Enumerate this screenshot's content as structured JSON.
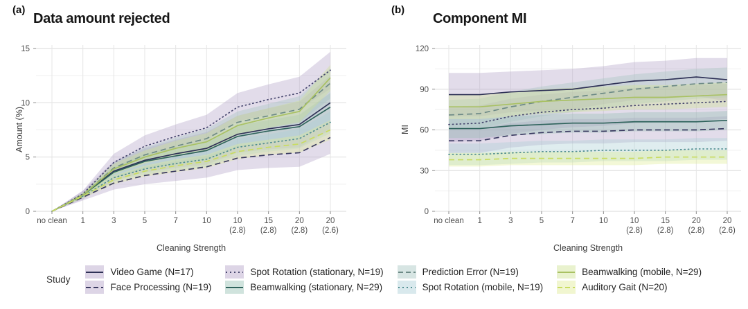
{
  "panels": {
    "a": {
      "tag": "(a)",
      "title": "Data amount rejected",
      "ylabel": "Amount (%)",
      "xlabel": "Cleaning Strength"
    },
    "b": {
      "tag": "(b)",
      "title": "Component MI",
      "ylabel": "MI",
      "xlabel": "Cleaning Strength"
    }
  },
  "legend": {
    "title": "Study",
    "items": [
      {
        "label": "Video Game (N=17)",
        "style": "solid",
        "color": "#2e3156",
        "band": "#b3a2c8"
      },
      {
        "label": "Face Processing (N=19)",
        "style": "dashed",
        "color": "#3a3a61",
        "band": "#b3a2c8"
      },
      {
        "label": "Spot Rotation (stationary, N=19)",
        "style": "dotted",
        "color": "#46466e",
        "band": "#b3a2c8"
      },
      {
        "label": "Beamwalking (stationary, N=29)",
        "style": "solid",
        "color": "#2f635c",
        "band": "#97c1b3"
      },
      {
        "label": "Prediction Error (N=19)",
        "style": "dashed",
        "color": "#6d8a86",
        "band": "#a6c6c1"
      },
      {
        "label": "Spot Rotation (mobile, N=19)",
        "style": "dotted",
        "color": "#4f8d90",
        "band": "#abcfd6"
      },
      {
        "label": "Beamwalking (mobile, N=29)",
        "style": "solid",
        "color": "#a9c163",
        "band": "#cfe292"
      },
      {
        "label": "Auditory Gait (N=20)",
        "style": "dashed",
        "color": "#c9dc60",
        "band": "#dfec96"
      }
    ]
  },
  "chart_data": [
    {
      "id": "a",
      "type": "line",
      "title": "Data amount rejected",
      "xlabel": "Cleaning Strength",
      "ylabel": "Amount (%)",
      "categories": [
        "no clean",
        "1",
        "3",
        "5",
        "7",
        "10",
        "10",
        "15",
        "20",
        "20"
      ],
      "categories_sub": [
        "",
        "",
        "",
        "",
        "",
        "",
        "(2.8)",
        "(2.8)",
        "(2.8)",
        "(2.6)"
      ],
      "ylim": [
        0,
        15
      ],
      "yticks": [
        0,
        5,
        10,
        15
      ],
      "yminor": [
        2.5,
        7.5,
        12.5
      ],
      "grid": true,
      "legend_position": "bottom",
      "series": [
        {
          "name": "Video Game (N=17)",
          "style": "solid",
          "color": "#2e3156",
          "band_color": "#b3a2c8",
          "values": [
            0,
            1.5,
            3.7,
            4.7,
            5.3,
            5.8,
            7.1,
            7.6,
            8.0,
            10.0
          ],
          "band": [
            0,
            0.4,
            0.9,
            1.1,
            1.3,
            1.5,
            1.7,
            1.9,
            2.1,
            2.5
          ]
        },
        {
          "name": "Face Processing (N=19)",
          "style": "dashed",
          "color": "#3a3a61",
          "band_color": "#b3a2c8",
          "values": [
            0,
            1.3,
            2.6,
            3.3,
            3.7,
            4.1,
            4.9,
            5.2,
            5.4,
            6.8
          ],
          "band": [
            0,
            0.3,
            0.6,
            0.8,
            0.9,
            1.0,
            1.1,
            1.2,
            1.3,
            1.5
          ]
        },
        {
          "name": "Spot Rotation (stationary, N=19)",
          "style": "dotted",
          "color": "#46466e",
          "band_color": "#b3a2c8",
          "values": [
            0,
            1.6,
            4.5,
            6.0,
            6.9,
            7.7,
            9.6,
            10.3,
            10.9,
            13.0
          ],
          "band": [
            0,
            0.3,
            0.8,
            1.0,
            1.1,
            1.2,
            1.3,
            1.4,
            1.5,
            1.7
          ]
        },
        {
          "name": "Beamwalking (stationary, N=29)",
          "style": "solid",
          "color": "#2f635c",
          "band_color": "#97c1b3",
          "values": [
            0,
            1.5,
            3.6,
            4.6,
            5.1,
            5.6,
            6.9,
            7.4,
            7.8,
            9.6
          ],
          "band": [
            0,
            0.2,
            0.5,
            0.7,
            0.8,
            0.9,
            1.0,
            1.0,
            1.1,
            1.3
          ]
        },
        {
          "name": "Prediction Error (N=19)",
          "style": "dashed",
          "color": "#6d8a86",
          "band_color": "#a6c6c1",
          "values": [
            0,
            1.5,
            4.0,
            5.2,
            6.0,
            6.7,
            8.2,
            8.8,
            9.4,
            11.8
          ],
          "band": [
            0,
            0.2,
            0.5,
            0.7,
            0.8,
            0.9,
            1.0,
            1.1,
            1.2,
            1.4
          ]
        },
        {
          "name": "Spot Rotation (mobile, N=19)",
          "style": "dotted",
          "color": "#4f8d90",
          "band_color": "#abcfd6",
          "values": [
            0,
            1.4,
            3.1,
            3.9,
            4.4,
            4.8,
            5.9,
            6.3,
            6.7,
            8.2
          ],
          "band": [
            0,
            0.2,
            0.4,
            0.5,
            0.6,
            0.7,
            0.8,
            0.8,
            0.9,
            1.0
          ]
        },
        {
          "name": "Beamwalking (mobile, N=29)",
          "style": "solid",
          "color": "#a9c163",
          "band_color": "#cfe292",
          "values": [
            0,
            1.5,
            3.9,
            5.0,
            5.8,
            6.4,
            7.9,
            8.6,
            9.2,
            12.3
          ],
          "band": [
            0,
            0.2,
            0.5,
            0.6,
            0.7,
            0.8,
            0.9,
            0.9,
            1.0,
            1.2
          ]
        },
        {
          "name": "Auditory Gait (N=20)",
          "style": "dashed",
          "color": "#c9dc60",
          "band_color": "#dfec96",
          "values": [
            0,
            1.4,
            2.9,
            3.7,
            4.2,
            4.6,
            5.5,
            5.9,
            6.2,
            7.5
          ],
          "band": [
            0,
            0.2,
            0.4,
            0.5,
            0.6,
            0.6,
            0.7,
            0.7,
            0.8,
            0.9
          ]
        }
      ]
    },
    {
      "id": "b",
      "type": "line",
      "title": "Component MI",
      "xlabel": "Cleaning Strength",
      "ylabel": "MI",
      "categories": [
        "no clean",
        "1",
        "3",
        "5",
        "7",
        "10",
        "10",
        "15",
        "20",
        "20"
      ],
      "categories_sub": [
        "",
        "",
        "",
        "",
        "",
        "",
        "(2.8)",
        "(2.8)",
        "(2.8)",
        "(2.6)"
      ],
      "ylim": [
        0,
        120
      ],
      "yticks": [
        0,
        30,
        60,
        90,
        120
      ],
      "yminor": [
        15,
        45,
        75,
        105
      ],
      "grid": true,
      "legend_position": "bottom",
      "series": [
        {
          "name": "Video Game (N=17)",
          "style": "solid",
          "color": "#2e3156",
          "band_color": "#b3a2c8",
          "values": [
            86,
            86,
            88,
            89,
            90,
            93,
            96,
            97,
            99,
            97
          ],
          "band": [
            16,
            16,
            15,
            15,
            15,
            14,
            14,
            14,
            14,
            16
          ]
        },
        {
          "name": "Face Processing (N=19)",
          "style": "dashed",
          "color": "#3a3a61",
          "band_color": "#b3a2c8",
          "values": [
            52,
            52,
            56,
            58,
            59,
            59,
            60,
            60,
            60,
            61
          ],
          "band": [
            9,
            9,
            9,
            9,
            9,
            9,
            9,
            9,
            9,
            9
          ]
        },
        {
          "name": "Spot Rotation (stationary, N=19)",
          "style": "dotted",
          "color": "#46466e",
          "band_color": "#b3a2c8",
          "values": [
            64,
            65,
            70,
            73,
            75,
            76,
            78,
            79,
            80,
            81
          ],
          "band": [
            13,
            13,
            13,
            13,
            13,
            13,
            13,
            13,
            13,
            13
          ]
        },
        {
          "name": "Beamwalking (stationary, N=29)",
          "style": "solid",
          "color": "#2f635c",
          "band_color": "#97c1b3",
          "values": [
            61,
            61,
            63,
            64,
            65,
            65,
            66,
            66,
            66,
            67
          ],
          "band": [
            7,
            7,
            7,
            7,
            7,
            7,
            7,
            7,
            7,
            7
          ]
        },
        {
          "name": "Prediction Error (N=19)",
          "style": "dashed",
          "color": "#6d8a86",
          "band_color": "#a6c6c1",
          "values": [
            71,
            72,
            77,
            81,
            84,
            87,
            90,
            92,
            94,
            95
          ],
          "band": [
            11,
            11,
            11,
            11,
            11,
            11,
            11,
            11,
            11,
            11
          ]
        },
        {
          "name": "Spot Rotation (mobile, N=19)",
          "style": "dotted",
          "color": "#4f8d90",
          "band_color": "#abcfd6",
          "values": [
            42,
            42,
            43,
            44,
            44,
            45,
            45,
            45,
            46,
            46
          ],
          "band": [
            8,
            8,
            8,
            8,
            8,
            8,
            8,
            8,
            8,
            8
          ]
        },
        {
          "name": "Beamwalking (mobile, N=29)",
          "style": "solid",
          "color": "#a9c163",
          "band_color": "#cfe292",
          "values": [
            77,
            77,
            79,
            81,
            82,
            83,
            84,
            84,
            85,
            86
          ],
          "band": [
            9,
            9,
            9,
            9,
            9,
            9,
            9,
            9,
            9,
            9
          ]
        },
        {
          "name": "Auditory Gait (N=20)",
          "style": "dashed",
          "color": "#c9dc60",
          "band_color": "#dfec96",
          "values": [
            38,
            38,
            39,
            39,
            39,
            39,
            39,
            40,
            40,
            40
          ],
          "band": [
            5,
            5,
            5,
            5,
            5,
            5,
            5,
            5,
            5,
            5
          ]
        }
      ]
    }
  ]
}
